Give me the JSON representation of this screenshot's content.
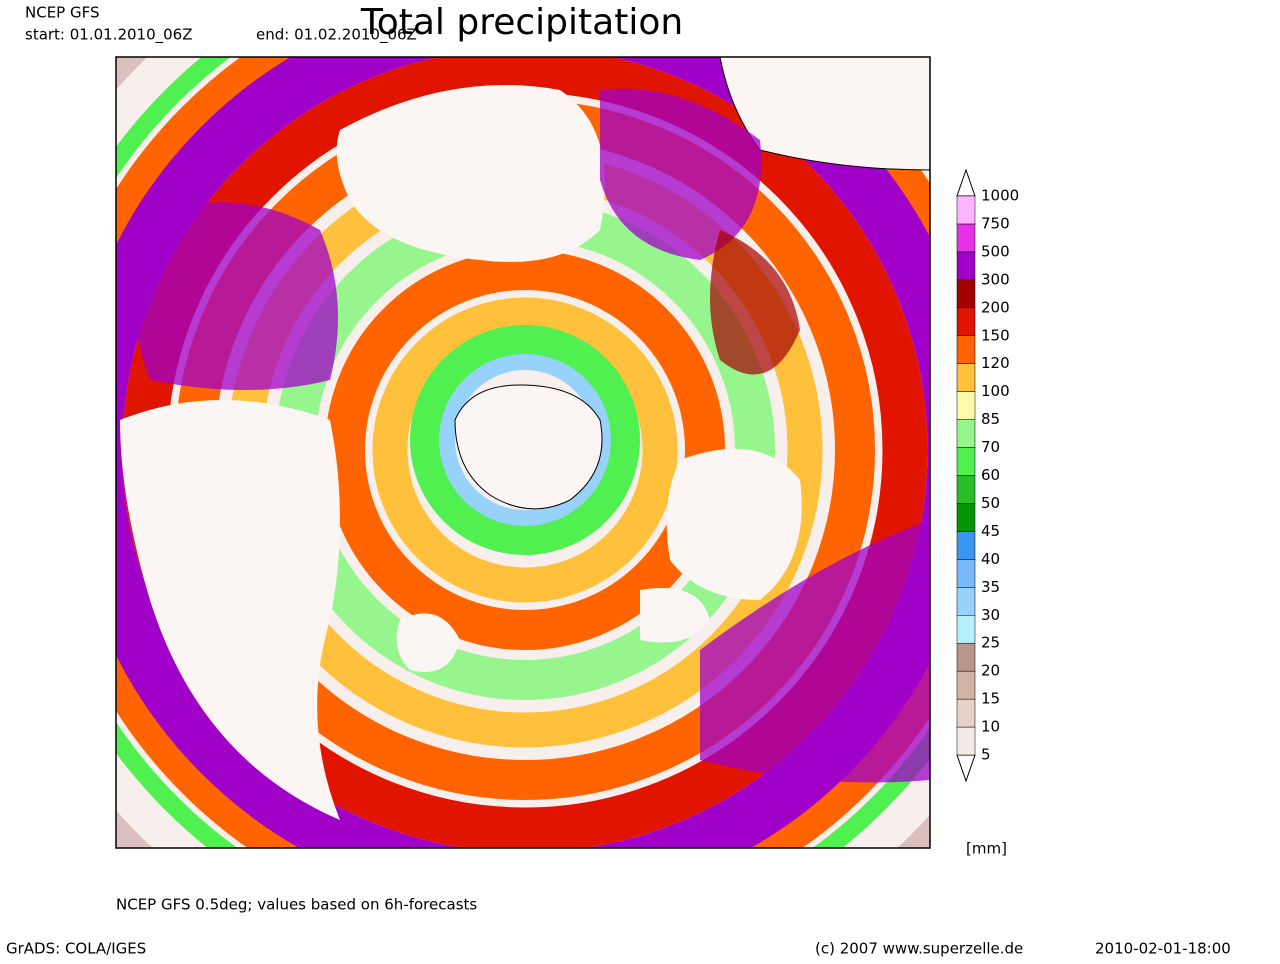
{
  "header": {
    "source": "NCEP GFS",
    "start": "start: 01.01.2010_06Z",
    "end": "end: 01.02.2010_06Z"
  },
  "title": "Total precipitation",
  "legend": {
    "levels": [
      5,
      10,
      15,
      20,
      25,
      30,
      35,
      40,
      45,
      50,
      60,
      70,
      85,
      100,
      120,
      150,
      200,
      300,
      500,
      750,
      1000
    ],
    "colors": [
      "#f5ebe6",
      "#e6d2c8",
      "#d2b4a5",
      "#b9968c",
      "#b4f0fa",
      "#96d2fa",
      "#78b9fa",
      "#3c96f0",
      "#009600",
      "#28be28",
      "#50f050",
      "#96f58c",
      "#fffaaa",
      "#ffc03c",
      "#ff6400",
      "#e11400",
      "#a50000",
      "#a000c8",
      "#e632e6",
      "#ffb4ff"
    ],
    "unit": "[mm]"
  },
  "footer": {
    "note": "NCEP GFS 0.5deg; values based on 6h-forecasts",
    "software": "GrADS: COLA/IGES",
    "credit": "(c) 2007 www.superzelle.de",
    "timestamp": "2010-02-01-18:00"
  }
}
